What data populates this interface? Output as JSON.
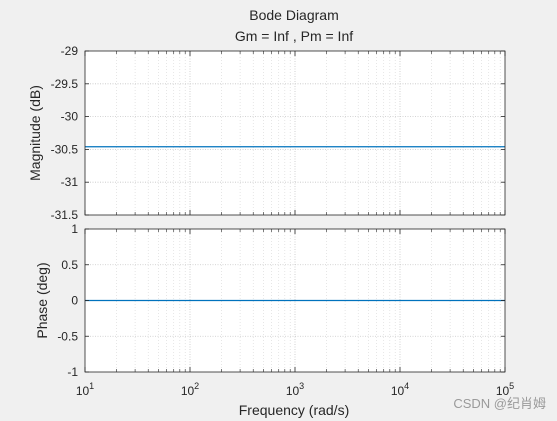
{
  "chart_data": {
    "type": "line",
    "title": "Bode Diagram",
    "subtitle": "Gm = Inf ,  Pm = Inf",
    "xlabel": "Frequency  (rad/s)",
    "x_scale": "log",
    "xlim": [
      10,
      100000
    ],
    "x_tick_labels": [
      {
        "base": "10",
        "exp": "1"
      },
      {
        "base": "10",
        "exp": "2"
      },
      {
        "base": "10",
        "exp": "3"
      },
      {
        "base": "10",
        "exp": "4"
      },
      {
        "base": "10",
        "exp": "5"
      }
    ],
    "grid": true,
    "line_color": "#0072bd",
    "panels": [
      {
        "ylabel": "Magnitude (dB)",
        "ylim": [
          -31.5,
          -29
        ],
        "y_ticks": [
          -31.5,
          -31,
          -30.5,
          -30,
          -29.5,
          -29
        ],
        "y_tick_labels": [
          "-31.5",
          "-31",
          "-30.5",
          "-30",
          "-29.5",
          "-29"
        ],
        "series": [
          {
            "x": [
              10,
              100000
            ],
            "y": [
              -30.46,
              -30.46
            ]
          }
        ]
      },
      {
        "ylabel": "Phase (deg)",
        "ylim": [
          -1,
          1
        ],
        "y_ticks": [
          -1,
          -0.5,
          0,
          0.5,
          1
        ],
        "y_tick_labels": [
          "-1",
          "-0.5",
          "0",
          "0.5",
          "1"
        ],
        "series": [
          {
            "x": [
              10,
              100000
            ],
            "y": [
              0,
              0
            ]
          }
        ]
      }
    ]
  },
  "watermark": "CSDN @纪肖姆"
}
